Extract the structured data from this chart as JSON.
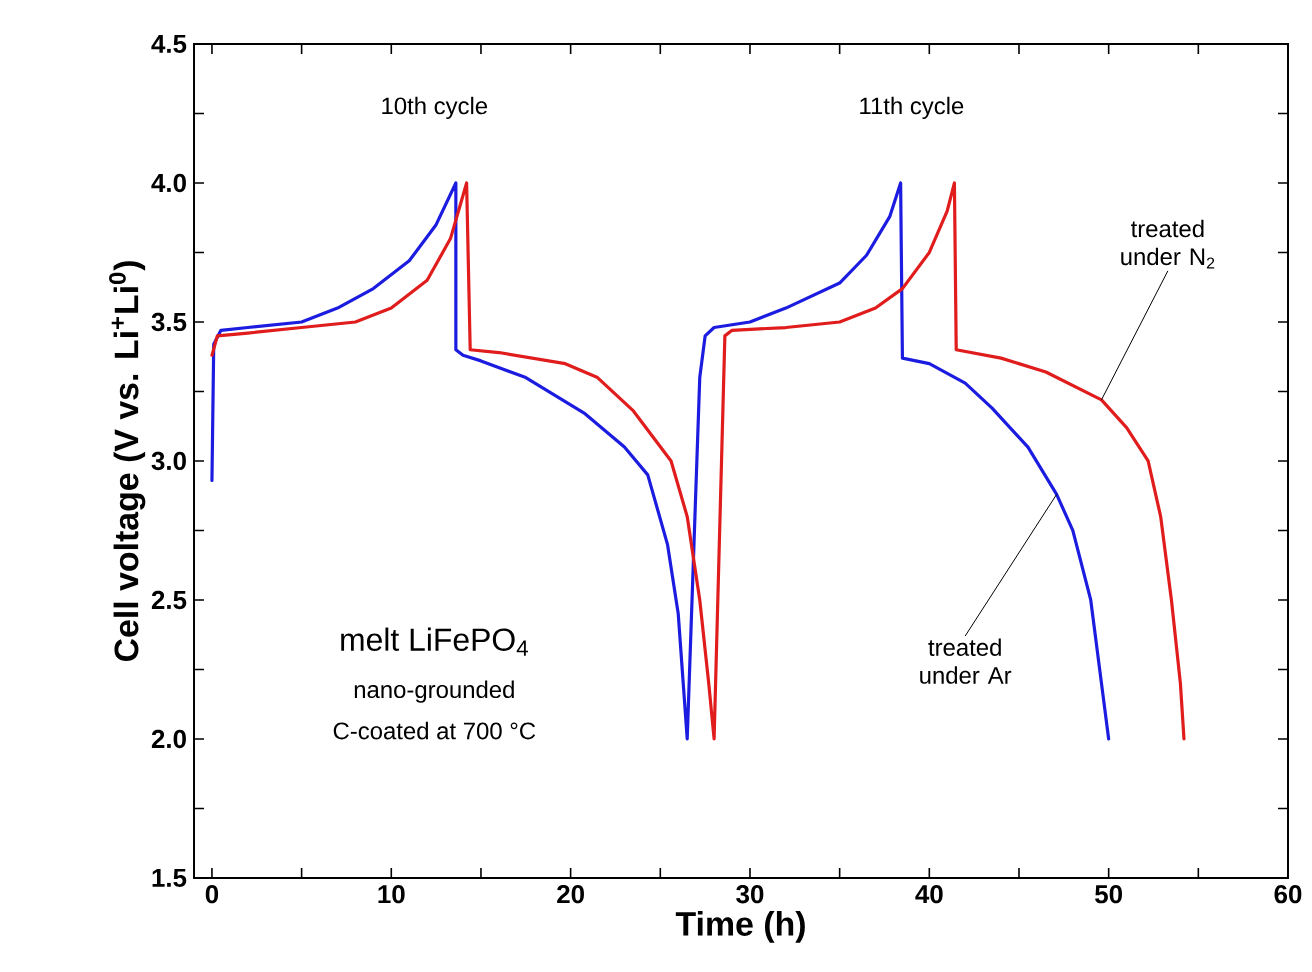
{
  "chart_data": {
    "type": "line",
    "xlabel": "Time (h)",
    "ylabel": "Cell voltage (V vs. Li$^{+}$Li$^{0}$)",
    "xlim": [
      -1,
      60
    ],
    "ylim": [
      1.5,
      4.5
    ],
    "xticks": [
      0,
      {
        "value": 5,
        "label": null
      },
      10,
      {
        "value": 15,
        "label": null
      },
      20,
      {
        "value": 25,
        "label": null
      },
      30,
      {
        "value": 35,
        "label": null
      },
      40,
      {
        "value": 45,
        "label": null
      },
      50,
      {
        "value": 55,
        "label": null
      },
      60
    ],
    "yticks": [
      {
        "value": 1.5,
        "label": "1.5"
      },
      {
        "value": 1.75,
        "label": null
      },
      {
        "value": 2,
        "label": "2.0"
      },
      {
        "value": 2.25,
        "label": null
      },
      {
        "value": 2.5,
        "label": "2.5"
      },
      {
        "value": 2.75,
        "label": null
      },
      {
        "value": 3,
        "label": "3.0"
      },
      {
        "value": 3.25,
        "label": null
      },
      {
        "value": 3.5,
        "label": "3.5"
      },
      {
        "value": 3.75,
        "label": null
      },
      {
        "value": 4,
        "label": "4.0"
      },
      {
        "value": 4.25,
        "label": null
      },
      {
        "value": 4.5,
        "label": "4.5"
      }
    ],
    "grid": false,
    "marker": "none",
    "line_style": "solid",
    "series": [
      {
        "color": "#1c1ce0",
        "x": [
          0,
          0.1,
          0.5,
          2,
          5,
          7,
          9,
          11,
          12.5,
          13.6,
          13.6,
          14,
          15,
          17.5,
          20.8,
          23,
          24.3,
          25.4,
          26,
          26.5,
          26.5,
          27.2,
          27.5,
          28,
          30,
          32,
          35,
          36.5,
          37.8,
          38.4,
          38.5,
          40,
          42,
          43.5,
          45.5,
          47.1,
          48,
          49,
          49.6,
          50
        ],
        "values": [
          2.93,
          3.42,
          3.47,
          3.48,
          3.5,
          3.55,
          3.62,
          3.72,
          3.85,
          4.0,
          3.4,
          3.38,
          3.36,
          3.3,
          3.17,
          3.05,
          2.95,
          2.7,
          2.45,
          2.0,
          2.0,
          3.3,
          3.45,
          3.48,
          3.5,
          3.55,
          3.64,
          3.74,
          3.88,
          4.0,
          3.37,
          3.35,
          3.28,
          3.19,
          3.05,
          2.88,
          2.75,
          2.5,
          2.2,
          2.0
        ]
      },
      {
        "color": "#e01c1c",
        "x": [
          0,
          0.3,
          2,
          5,
          8,
          10,
          12,
          13.3,
          14.2,
          14.4,
          16,
          19.7,
          21.5,
          23.5,
          25.6,
          26.5,
          27.2,
          27.7,
          28,
          28,
          28.6,
          29,
          32,
          35,
          37,
          38.5,
          40,
          41,
          41.4,
          41.5,
          44,
          46.5,
          49.6,
          51,
          52.2,
          52.9,
          53.5,
          54,
          54.2
        ],
        "values": [
          3.38,
          3.45,
          3.46,
          3.48,
          3.5,
          3.55,
          3.65,
          3.8,
          4.0,
          3.4,
          3.39,
          3.35,
          3.3,
          3.18,
          3.0,
          2.8,
          2.5,
          2.2,
          2.0,
          2.0,
          3.45,
          3.47,
          3.48,
          3.5,
          3.55,
          3.62,
          3.75,
          3.9,
          4.0,
          3.4,
          3.37,
          3.32,
          3.22,
          3.12,
          3.0,
          2.8,
          2.5,
          2.2,
          2.0
        ]
      }
    ],
    "annotations": [
      "10th cycle",
      "11th cycle",
      "melt LiFePO$_{4}$",
      "nano-grounded",
      "C-coated at 700 °C",
      {
        "text": "treated under N$_{2}$",
        "x": 49.6,
        "y": 3.22
      },
      {
        "text": "treated under Ar",
        "x": 47.1,
        "y": 2.88
      }
    ]
  }
}
